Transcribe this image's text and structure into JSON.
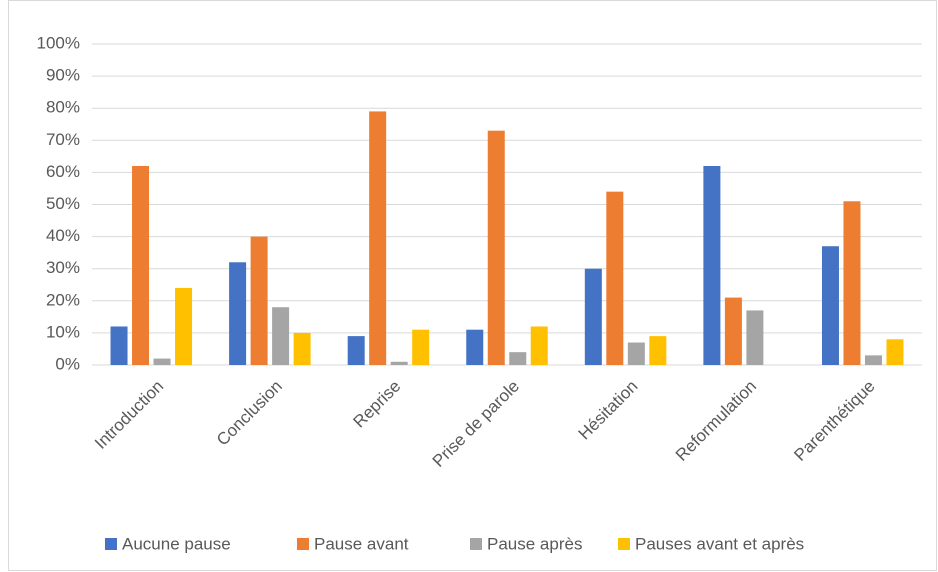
{
  "chart_data": {
    "type": "bar",
    "categories": [
      "Introduction",
      "Conclusion",
      "Reprise",
      "Prise de parole",
      "Hésitation",
      "Reformulation",
      "Parenthétique"
    ],
    "series": [
      {
        "name": "Aucune pause",
        "color": "#4472c4",
        "values": [
          12,
          32,
          9,
          11,
          30,
          62,
          37
        ]
      },
      {
        "name": "Pause avant",
        "color": "#ed7d31",
        "values": [
          62,
          40,
          79,
          73,
          54,
          21,
          51
        ]
      },
      {
        "name": "Pause après",
        "color": "#a5a5a5",
        "values": [
          2,
          18,
          1,
          4,
          7,
          17,
          3
        ]
      },
      {
        "name": "Pauses avant et après",
        "color": "#ffc000",
        "values": [
          24,
          10,
          11,
          12,
          9,
          0,
          8
        ]
      }
    ],
    "ylim": [
      0,
      100
    ],
    "yticks": [
      {
        "value": 0,
        "label": "0%"
      },
      {
        "value": 10,
        "label": "10%"
      },
      {
        "value": 20,
        "label": "20%"
      },
      {
        "value": 30,
        "label": "30%"
      },
      {
        "value": 40,
        "label": "40%"
      },
      {
        "value": 50,
        "label": "50%"
      },
      {
        "value": 60,
        "label": "60%"
      },
      {
        "value": 70,
        "label": "70%"
      },
      {
        "value": 80,
        "label": "80%"
      },
      {
        "value": 90,
        "label": "90%"
      },
      {
        "value": 100,
        "label": "100%"
      }
    ],
    "grid": true,
    "legend": "bottom"
  }
}
